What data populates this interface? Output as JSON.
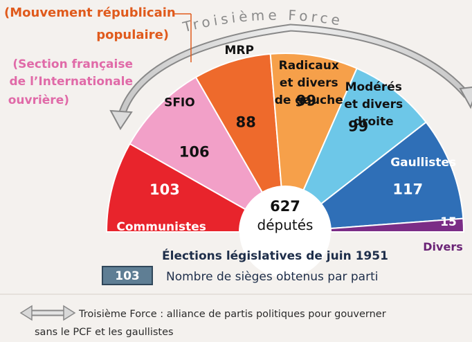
{
  "chart_data": {
    "type": "pie",
    "subtype": "half-donut hemicycle",
    "title": "Élections législatives de juin 1951",
    "center_label": {
      "number": "627",
      "unit": "députés"
    },
    "total": 627,
    "slices": [
      {
        "name": "Communistes",
        "value": 103,
        "color": "#e8242c",
        "name_lines": [
          "Communistes"
        ]
      },
      {
        "name": "SFIO",
        "value": 106,
        "color": "#f2a0c8",
        "name_lines": [
          "SFIO"
        ]
      },
      {
        "name": "MRP",
        "value": 88,
        "color": "#ee6a2c",
        "name_lines": [
          "MRP"
        ]
      },
      {
        "name": "Radicaux et divers de gauche",
        "value": 99,
        "color": "#f6a04a",
        "name_lines": [
          "Radicaux",
          "et divers",
          "de gauche"
        ]
      },
      {
        "name": "Modérés et divers droite",
        "value": 99,
        "color": "#6dc7e8",
        "name_lines": [
          "Modérés",
          "et divers",
          "droite"
        ]
      },
      {
        "name": "Gaullistes",
        "value": 117,
        "color": "#2f6fb7",
        "name_lines": [
          "Gaullistes"
        ]
      },
      {
        "name": "Divers",
        "value": 15,
        "color": "#7b2d86",
        "name_lines": [
          "Divers"
        ]
      }
    ],
    "annotations": {
      "troisieme_force": "Troisième Force",
      "mrp_full": [
        "(Mouvement républicain",
        "populaire)"
      ],
      "sfio_full": [
        "(Section française",
        "de l’Internationale",
        "ouvrière)"
      ]
    },
    "legend": {
      "badge_value": "103",
      "badge_text": "Nombre de sièges obtenus par parti",
      "arrow_text_lines": [
        "Troisième Force : alliance de partis politiques pour gouverner",
        "sans le PCF et les gaullistes"
      ]
    }
  }
}
